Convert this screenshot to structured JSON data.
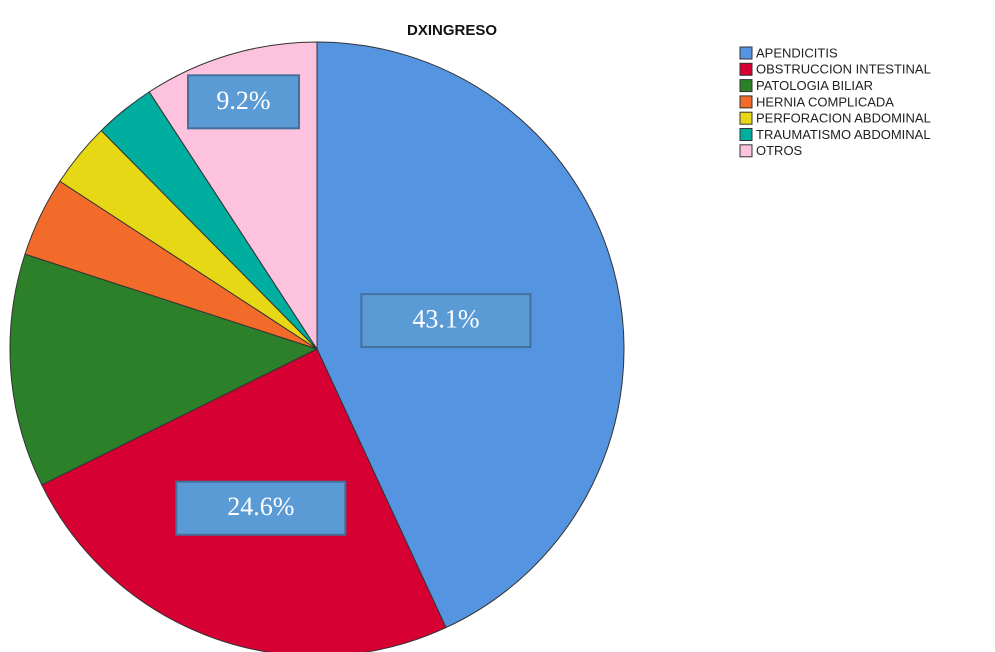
{
  "chart_data": {
    "type": "pie",
    "title": "DXINGRESO",
    "categories": [
      "APENDICITIS",
      "OBSTRUCCION INTESTINAL",
      "PATOLOGIA BILIAR",
      "HERNIA COMPLICADA",
      "PERFORACION ABDOMINAL",
      "TRAUMATISMO ABDOMINAL",
      "OTROS"
    ],
    "values": [
      43.1,
      24.6,
      12.3,
      4.2,
      3.4,
      3.2,
      9.2
    ],
    "value_labels": [
      "43.1%",
      "24.6%",
      null,
      null,
      null,
      null,
      "9.2%"
    ],
    "colors": [
      "#5594e1",
      "#d60032",
      "#2b8029",
      "#f26b2a",
      "#e6d815",
      "#00ae9f",
      "#fcc2de"
    ],
    "legend": "right"
  }
}
